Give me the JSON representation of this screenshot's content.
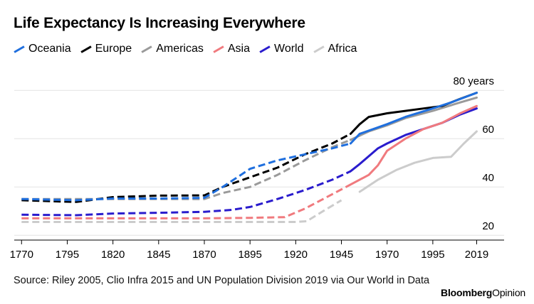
{
  "title": "Life Expectancy Is Increasing Everywhere",
  "source": "Source: Riley 2005, Clio Infra 2015 and UN Population Division 2019 via Our World in Data",
  "brand": {
    "name": "Bloomberg",
    "suffix": "Opinion"
  },
  "chart_data": {
    "type": "line",
    "title": "Life Expectancy Is Increasing Everywhere",
    "xlabel": "",
    "ylabel": "",
    "xlim": [
      1766,
      2034
    ],
    "ylim": [
      18,
      88
    ],
    "x_ticks": [
      1770,
      1795,
      1820,
      1845,
      1870,
      1895,
      1920,
      1945,
      1970,
      1995,
      2019
    ],
    "x_tick_labels": [
      "1770",
      "1795",
      "1820",
      "1845",
      "1870",
      "1895",
      "1920",
      "1945",
      "1970",
      "1995",
      "2019"
    ],
    "y_ticks": [
      20,
      40,
      60,
      80
    ],
    "y_tick_labels": [
      "20",
      "40",
      "60",
      "80 years"
    ],
    "grid": "horizontal",
    "legend_position": "top",
    "note": "",
    "series": [
      {
        "name": "Oceania",
        "color": "#1f6fde",
        "dashed_until": 1950,
        "points": [
          [
            1770,
            35
          ],
          [
            1800,
            34.5
          ],
          [
            1820,
            35.2
          ],
          [
            1845,
            35.2
          ],
          [
            1870,
            35.5
          ],
          [
            1880,
            40
          ],
          [
            1895,
            47.5
          ],
          [
            1910,
            51
          ],
          [
            1925,
            53.5
          ],
          [
            1940,
            56
          ],
          [
            1950,
            58
          ],
          [
            1955,
            62
          ],
          [
            1970,
            66
          ],
          [
            1980,
            69
          ],
          [
            1995,
            72.5
          ],
          [
            2005,
            75
          ],
          [
            2019,
            79
          ]
        ]
      },
      {
        "name": "Europe",
        "color": "#000000",
        "dashed_until": 1950,
        "points": [
          [
            1770,
            34.5
          ],
          [
            1790,
            34
          ],
          [
            1800,
            33.8
          ],
          [
            1820,
            35.8
          ],
          [
            1845,
            36.4
          ],
          [
            1870,
            36.5
          ],
          [
            1880,
            40
          ],
          [
            1895,
            44
          ],
          [
            1910,
            48
          ],
          [
            1925,
            53.5
          ],
          [
            1940,
            58
          ],
          [
            1950,
            62
          ],
          [
            1955,
            66
          ],
          [
            1960,
            69
          ],
          [
            1970,
            70.5
          ],
          [
            1980,
            71.5
          ],
          [
            1990,
            72.5
          ],
          [
            2000,
            73.5
          ],
          [
            2010,
            76.5
          ],
          [
            2019,
            79
          ]
        ]
      },
      {
        "name": "Americas",
        "color": "#9a9a9a",
        "dashed_until": 1950,
        "points": [
          [
            1770,
            35
          ],
          [
            1820,
            35
          ],
          [
            1845,
            35
          ],
          [
            1870,
            35
          ],
          [
            1880,
            37.5
          ],
          [
            1895,
            40
          ],
          [
            1910,
            45
          ],
          [
            1925,
            51
          ],
          [
            1940,
            56.5
          ],
          [
            1950,
            59.5
          ],
          [
            1960,
            63
          ],
          [
            1970,
            65.5
          ],
          [
            1980,
            68.5
          ],
          [
            1995,
            71.5
          ],
          [
            2010,
            75
          ],
          [
            2019,
            77
          ]
        ]
      },
      {
        "name": "Asia",
        "color": "#f07a7e",
        "dashed_until": 1950,
        "points": [
          [
            1770,
            27
          ],
          [
            1820,
            27
          ],
          [
            1870,
            27
          ],
          [
            1895,
            27.2
          ],
          [
            1914,
            27.5
          ],
          [
            1925,
            31
          ],
          [
            1940,
            37
          ],
          [
            1950,
            41
          ],
          [
            1960,
            45
          ],
          [
            1965,
            49
          ],
          [
            1970,
            55
          ],
          [
            1980,
            60
          ],
          [
            1990,
            64
          ],
          [
            2000,
            66.5
          ],
          [
            2010,
            70.5
          ],
          [
            2019,
            73.5
          ]
        ]
      },
      {
        "name": "World",
        "color": "#2a1ccd",
        "dashed_until": 1950,
        "points": [
          [
            1770,
            28.5
          ],
          [
            1800,
            28.3
          ],
          [
            1820,
            29
          ],
          [
            1845,
            29.3
          ],
          [
            1870,
            29.7
          ],
          [
            1885,
            30.5
          ],
          [
            1895,
            31.7
          ],
          [
            1910,
            35
          ],
          [
            1925,
            38.7
          ],
          [
            1940,
            43
          ],
          [
            1950,
            46.5
          ],
          [
            1955,
            49.5
          ],
          [
            1965,
            56
          ],
          [
            1970,
            58
          ],
          [
            1980,
            61.5
          ],
          [
            1990,
            64
          ],
          [
            2000,
            66.5
          ],
          [
            2010,
            70
          ],
          [
            2019,
            72.5
          ]
        ]
      },
      {
        "name": "Africa",
        "color": "#cccccc",
        "dashed_until": 1950,
        "points": [
          [
            1770,
            25.5
          ],
          [
            1870,
            25.5
          ],
          [
            1920,
            25.5
          ],
          [
            1926,
            25.8
          ],
          [
            1935,
            30
          ],
          [
            1945,
            34.5
          ],
          [
            1955,
            38
          ],
          [
            1965,
            43
          ],
          [
            1975,
            47
          ],
          [
            1985,
            50
          ],
          [
            1995,
            52
          ],
          [
            2005,
            52.5
          ],
          [
            2012,
            58
          ],
          [
            2019,
            63
          ]
        ]
      }
    ]
  }
}
